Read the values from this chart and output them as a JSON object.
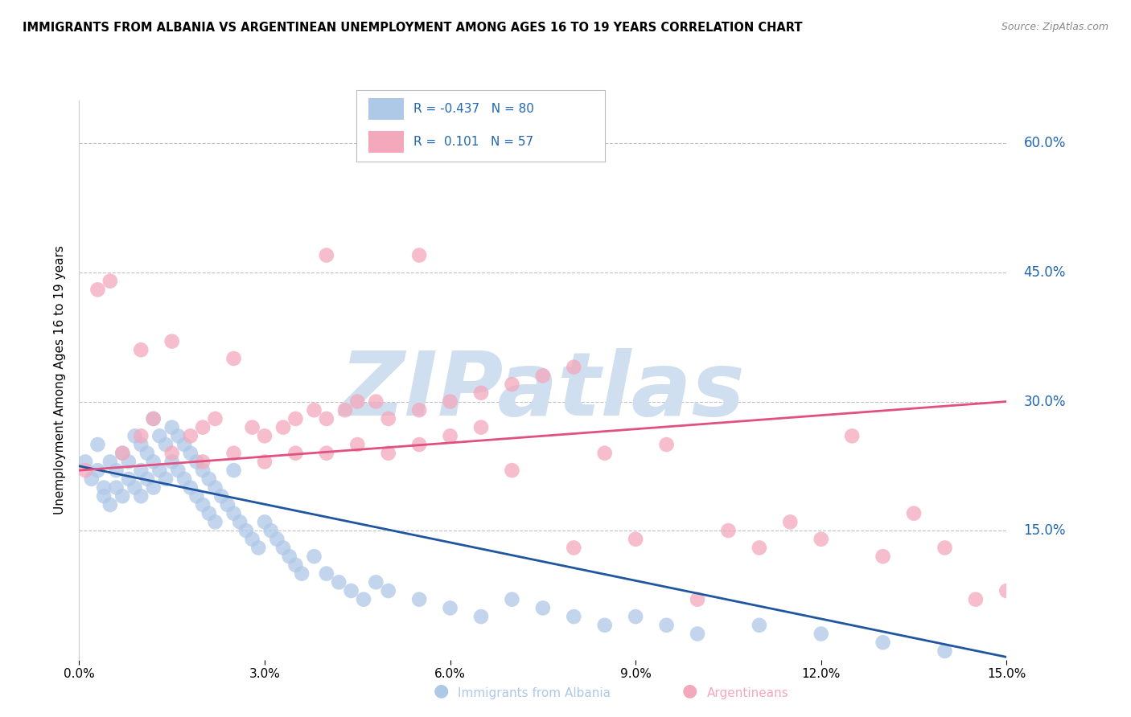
{
  "title": "IMMIGRANTS FROM ALBANIA VS ARGENTINEAN UNEMPLOYMENT AMONG AGES 16 TO 19 YEARS CORRELATION CHART",
  "source": "Source: ZipAtlas.com",
  "ylabel": "Unemployment Among Ages 16 to 19 years",
  "xlim": [
    0.0,
    0.15
  ],
  "ylim": [
    0.0,
    0.65
  ],
  "yticks": [
    0.15,
    0.3,
    0.45,
    0.6
  ],
  "ytick_labels": [
    "15.0%",
    "30.0%",
    "45.0%",
    "60.0%"
  ],
  "xticks": [
    0.0,
    0.03,
    0.06,
    0.09,
    0.12,
    0.15
  ],
  "xtick_labels": [
    "0.0%",
    "3.0%",
    "6.0%",
    "9.0%",
    "12.0%",
    "15.0%"
  ],
  "blue_R": -0.437,
  "blue_N": 80,
  "pink_R": 0.101,
  "pink_N": 57,
  "blue_color": "#aec8e8",
  "pink_color": "#f4a8bc",
  "blue_line_color": "#2055a0",
  "pink_line_color": "#e05080",
  "watermark": "ZIPatlas",
  "watermark_color": "#d0dff0",
  "background_color": "#ffffff",
  "grid_color": "#c0c0c0",
  "legend_color": "#2166ac",
  "blue_scatter_x": [
    0.001,
    0.002,
    0.003,
    0.003,
    0.004,
    0.004,
    0.005,
    0.005,
    0.006,
    0.006,
    0.007,
    0.007,
    0.008,
    0.008,
    0.009,
    0.009,
    0.01,
    0.01,
    0.01,
    0.011,
    0.011,
    0.012,
    0.012,
    0.012,
    0.013,
    0.013,
    0.014,
    0.014,
    0.015,
    0.015,
    0.016,
    0.016,
    0.017,
    0.017,
    0.018,
    0.018,
    0.019,
    0.019,
    0.02,
    0.02,
    0.021,
    0.021,
    0.022,
    0.022,
    0.023,
    0.024,
    0.025,
    0.025,
    0.026,
    0.027,
    0.028,
    0.029,
    0.03,
    0.031,
    0.032,
    0.033,
    0.034,
    0.035,
    0.036,
    0.038,
    0.04,
    0.042,
    0.044,
    0.046,
    0.048,
    0.05,
    0.055,
    0.06,
    0.065,
    0.07,
    0.075,
    0.08,
    0.085,
    0.09,
    0.095,
    0.1,
    0.11,
    0.12,
    0.13,
    0.14
  ],
  "blue_scatter_y": [
    0.23,
    0.21,
    0.25,
    0.22,
    0.2,
    0.19,
    0.23,
    0.18,
    0.22,
    0.2,
    0.24,
    0.19,
    0.23,
    0.21,
    0.26,
    0.2,
    0.25,
    0.22,
    0.19,
    0.24,
    0.21,
    0.28,
    0.23,
    0.2,
    0.26,
    0.22,
    0.25,
    0.21,
    0.27,
    0.23,
    0.26,
    0.22,
    0.25,
    0.21,
    0.24,
    0.2,
    0.23,
    0.19,
    0.22,
    0.18,
    0.21,
    0.17,
    0.2,
    0.16,
    0.19,
    0.18,
    0.17,
    0.22,
    0.16,
    0.15,
    0.14,
    0.13,
    0.16,
    0.15,
    0.14,
    0.13,
    0.12,
    0.11,
    0.1,
    0.12,
    0.1,
    0.09,
    0.08,
    0.07,
    0.09,
    0.08,
    0.07,
    0.06,
    0.05,
    0.07,
    0.06,
    0.05,
    0.04,
    0.05,
    0.04,
    0.03,
    0.04,
    0.03,
    0.02,
    0.01
  ],
  "pink_scatter_x": [
    0.001,
    0.003,
    0.005,
    0.007,
    0.01,
    0.01,
    0.012,
    0.015,
    0.015,
    0.018,
    0.02,
    0.02,
    0.022,
    0.025,
    0.025,
    0.028,
    0.03,
    0.03,
    0.033,
    0.035,
    0.035,
    0.038,
    0.04,
    0.04,
    0.043,
    0.045,
    0.045,
    0.048,
    0.05,
    0.05,
    0.055,
    0.055,
    0.06,
    0.06,
    0.065,
    0.065,
    0.07,
    0.07,
    0.075,
    0.08,
    0.08,
    0.085,
    0.09,
    0.095,
    0.1,
    0.105,
    0.11,
    0.115,
    0.12,
    0.125,
    0.13,
    0.135,
    0.14,
    0.145,
    0.15,
    0.04,
    0.055
  ],
  "pink_scatter_y": [
    0.22,
    0.43,
    0.44,
    0.24,
    0.36,
    0.26,
    0.28,
    0.37,
    0.24,
    0.26,
    0.27,
    0.23,
    0.28,
    0.35,
    0.24,
    0.27,
    0.26,
    0.23,
    0.27,
    0.28,
    0.24,
    0.29,
    0.28,
    0.24,
    0.29,
    0.3,
    0.25,
    0.3,
    0.28,
    0.24,
    0.29,
    0.25,
    0.3,
    0.26,
    0.31,
    0.27,
    0.32,
    0.22,
    0.33,
    0.34,
    0.13,
    0.24,
    0.14,
    0.25,
    0.07,
    0.15,
    0.13,
    0.16,
    0.14,
    0.26,
    0.12,
    0.17,
    0.13,
    0.07,
    0.08,
    0.47,
    0.47
  ],
  "blue_line_x": [
    0.0,
    0.15
  ],
  "blue_line_y": [
    0.225,
    0.003
  ],
  "pink_line_x": [
    0.0,
    0.15
  ],
  "pink_line_y": [
    0.22,
    0.3
  ]
}
